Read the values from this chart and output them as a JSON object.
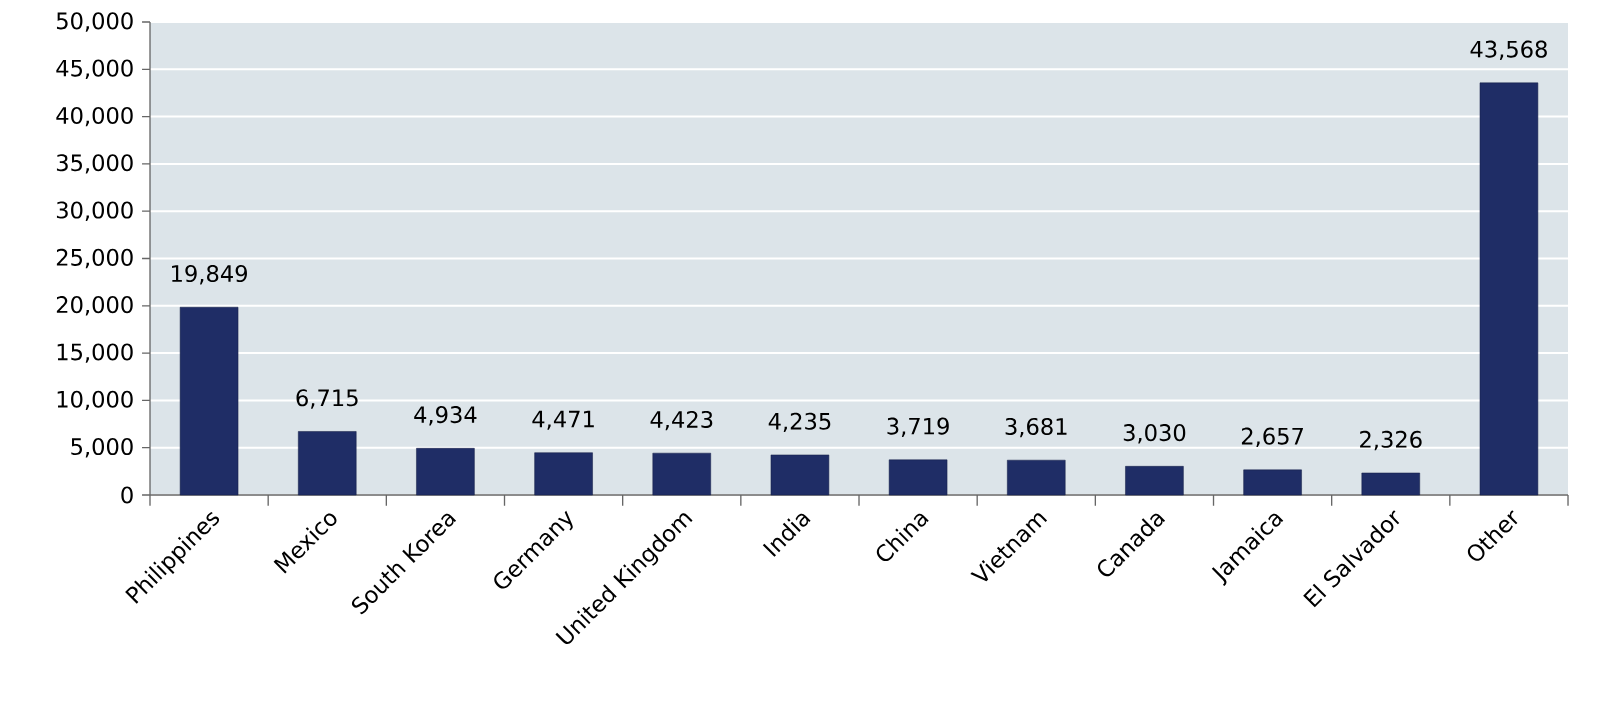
{
  "chart_data": {
    "type": "bar",
    "categories": [
      "Philippines",
      "Mexico",
      "South Korea",
      "Germany",
      "United Kingdom",
      "India",
      "China",
      "Vietnam",
      "Canada",
      "Jamaica",
      "El Salvador",
      "Other"
    ],
    "values": [
      19849,
      6715,
      4934,
      4471,
      4423,
      4235,
      3719,
      3681,
      3030,
      2657,
      2326,
      43568
    ],
    "value_labels": [
      "19,849",
      "6,715",
      "4,934",
      "4,471",
      "4,423",
      "4,235",
      "3,719",
      "3,681",
      "3,030",
      "2,657",
      "2,326",
      "43,568"
    ],
    "color": "#1f2d66",
    "ylim": [
      0,
      50000
    ],
    "yticks": [
      {
        "value": 0,
        "label": "0"
      },
      {
        "value": 5000,
        "label": "5,000"
      },
      {
        "value": 10000,
        "label": "10,000"
      },
      {
        "value": 15000,
        "label": "15,000"
      },
      {
        "value": 20000,
        "label": "20,000"
      },
      {
        "value": 25000,
        "label": "25,000"
      },
      {
        "value": 30000,
        "label": "30,000"
      },
      {
        "value": 35000,
        "label": "35,000"
      },
      {
        "value": 40000,
        "label": "40,000"
      },
      {
        "value": 45000,
        "label": "45,000"
      },
      {
        "value": 50000,
        "label": "50,000"
      }
    ],
    "grid": "y"
  }
}
